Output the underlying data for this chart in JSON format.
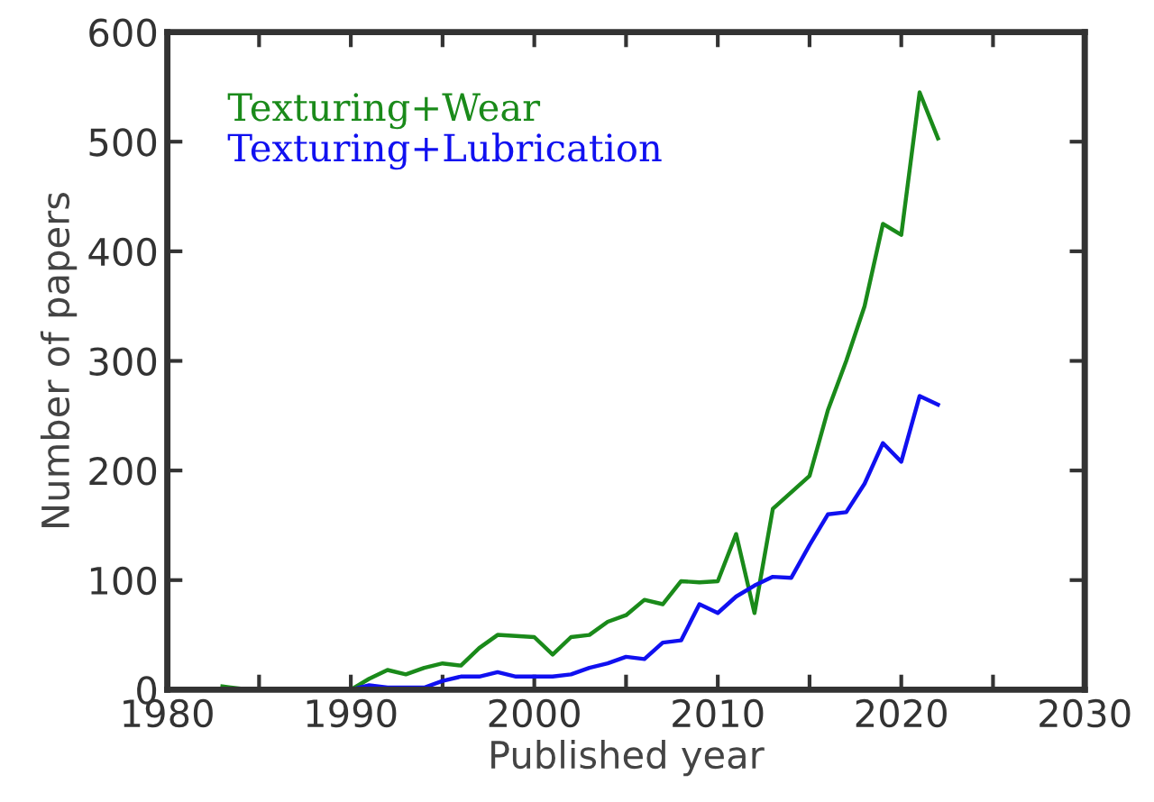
{
  "chart_data": {
    "type": "line",
    "xlabel": "Published year",
    "ylabel": "Number of papers",
    "xlim": [
      1980,
      2030
    ],
    "ylim": [
      0,
      600
    ],
    "xticks": [
      1980,
      {
        "value": 1985,
        "label": null
      },
      1990,
      {
        "value": 1995,
        "label": null
      },
      2000,
      {
        "value": 2005,
        "label": null
      },
      2010,
      {
        "value": 2015,
        "label": null
      },
      2020,
      {
        "value": 2025,
        "label": null
      },
      2030
    ],
    "yticks": [
      0,
      100,
      200,
      300,
      400,
      500,
      600
    ],
    "grid": false,
    "legend": "top left",
    "marker": "none",
    "line_style": "solid",
    "series": [
      {
        "name": "Texturing+Wear",
        "color": "#1a8a1a",
        "x": [
          1983,
          1984,
          1988,
          1990,
          1991,
          1992,
          1993,
          1994,
          1995,
          1996,
          1997,
          1998,
          1999,
          2000,
          2001,
          2002,
          2003,
          2004,
          2005,
          2006,
          2007,
          2008,
          2009,
          2010,
          2011,
          2012,
          2013,
          2014,
          2015,
          2016,
          2017,
          2018,
          2019,
          2020,
          2021,
          2022
        ],
        "values": [
          3,
          1,
          1,
          0,
          10,
          18,
          14,
          20,
          24,
          22,
          38,
          50,
          49,
          48,
          32,
          48,
          50,
          62,
          68,
          82,
          78,
          99,
          98,
          99,
          142,
          70,
          165,
          180,
          195,
          255,
          300,
          350,
          425,
          415,
          545,
          503
        ]
      },
      {
        "name": "Texturing+Lubrication",
        "color": "#1010f0",
        "x": [
          1990,
          1991,
          1992,
          1993,
          1994,
          1995,
          1996,
          1997,
          1998,
          1999,
          2000,
          2001,
          2002,
          2003,
          2004,
          2005,
          2006,
          2007,
          2008,
          2009,
          2010,
          2011,
          2012,
          2013,
          2014,
          2015,
          2016,
          2017,
          2018,
          2019,
          2020,
          2021,
          2022
        ],
        "values": [
          0,
          4,
          2,
          2,
          2,
          8,
          12,
          12,
          16,
          12,
          12,
          12,
          14,
          20,
          24,
          30,
          28,
          43,
          45,
          78,
          70,
          85,
          95,
          103,
          102,
          132,
          160,
          162,
          188,
          225,
          208,
          268,
          260
        ]
      }
    ]
  }
}
